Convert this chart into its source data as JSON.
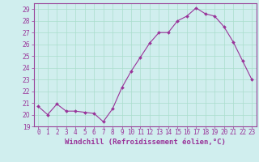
{
  "x": [
    0,
    1,
    2,
    3,
    4,
    5,
    6,
    7,
    8,
    9,
    10,
    11,
    12,
    13,
    14,
    15,
    16,
    17,
    18,
    19,
    20,
    21,
    22,
    23
  ],
  "y": [
    20.7,
    20.0,
    20.9,
    20.3,
    20.3,
    20.2,
    20.1,
    19.4,
    20.5,
    22.3,
    23.7,
    24.9,
    26.1,
    27.0,
    27.0,
    28.0,
    28.4,
    29.1,
    28.6,
    28.4,
    27.5,
    26.2,
    24.6,
    23.0
  ],
  "line_color": "#993399",
  "marker": "D",
  "markersize": 2.0,
  "linewidth": 0.8,
  "xlabel": "Windchill (Refroidissement éolien,°C)",
  "xlabel_fontsize": 6.5,
  "xlim": [
    -0.5,
    23.5
  ],
  "ylim": [
    19,
    29.5
  ],
  "yticks": [
    19,
    20,
    21,
    22,
    23,
    24,
    25,
    26,
    27,
    28,
    29
  ],
  "xtick_labels": [
    "0",
    "1",
    "2",
    "3",
    "4",
    "5",
    "6",
    "7",
    "8",
    "9",
    "10",
    "11",
    "12",
    "13",
    "14",
    "15",
    "16",
    "17",
    "18",
    "19",
    "20",
    "21",
    "22",
    "23"
  ],
  "grid_color": "#aaddcc",
  "bg_color": "#d0eeee",
  "tick_color": "#993399",
  "tick_fontsize": 5.5,
  "xlabel_tick_fontsize": 5.5,
  "grid_linewidth": 0.5
}
